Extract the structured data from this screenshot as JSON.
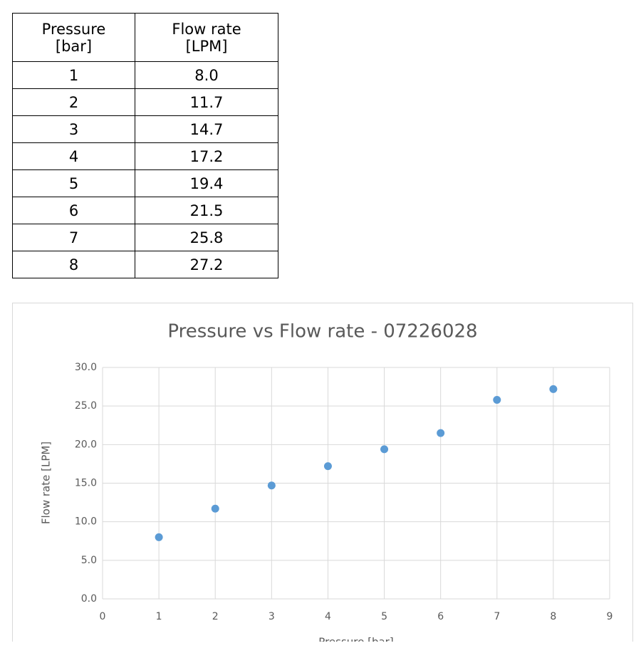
{
  "table": {
    "header": [
      [
        "Pressure",
        "[bar]"
      ],
      [
        "Flow rate",
        "[LPM]"
      ]
    ],
    "rows": [
      [
        "1",
        "8.0"
      ],
      [
        "2",
        "11.7"
      ],
      [
        "3",
        "14.7"
      ],
      [
        "4",
        "17.2"
      ],
      [
        "5",
        "19.4"
      ],
      [
        "6",
        "21.5"
      ],
      [
        "7",
        "25.8"
      ],
      [
        "8",
        "27.2"
      ]
    ]
  },
  "chart_data": {
    "type": "scatter",
    "title": "Pressure vs Flow rate - 07226028",
    "xlabel": "Pressure [bar]",
    "ylabel": "Flow rate [LPM]",
    "x": [
      1,
      2,
      3,
      4,
      5,
      6,
      7,
      8
    ],
    "values": [
      8.0,
      11.7,
      14.7,
      17.2,
      19.4,
      21.5,
      25.8,
      27.2
    ],
    "color": "#5b9bd5",
    "xlim": [
      0,
      9
    ],
    "xticks": [
      0,
      1,
      2,
      3,
      4,
      5,
      6,
      7,
      8,
      9
    ],
    "ylim": [
      0,
      30
    ],
    "yticks": [
      {
        "value": 0,
        "label": "0.0"
      },
      {
        "value": 5,
        "label": "5.0"
      },
      {
        "value": 10,
        "label": "10.0"
      },
      {
        "value": 15,
        "label": "15.0"
      },
      {
        "value": 20,
        "label": "20.0"
      },
      {
        "value": 25,
        "label": "25.0"
      },
      {
        "value": 30,
        "label": "30.0"
      }
    ],
    "grid": true
  }
}
